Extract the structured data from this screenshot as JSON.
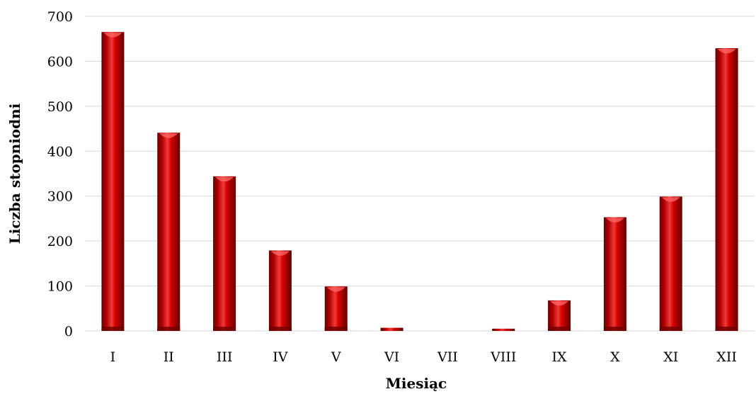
{
  "chart_data": {
    "type": "bar",
    "title": "",
    "xlabel": "Miesiąc",
    "ylabel": "Liczba stopniodni",
    "categories": [
      "I",
      "II",
      "III",
      "IV",
      "V",
      "VI",
      "VII",
      "VIII",
      "IX",
      "X",
      "XI",
      "XII"
    ],
    "values": [
      665,
      441,
      344,
      179,
      99,
      7,
      0,
      5,
      68,
      253,
      299,
      629
    ],
    "ylim": [
      0,
      700
    ],
    "yticks": [
      "0",
      "100",
      "200",
      "300",
      "400",
      "500",
      "600",
      "700"
    ],
    "grid": true,
    "legend": "none",
    "colors": {
      "bar": "#c00000",
      "bar_dark": "#6b0000",
      "bar_light": "#f24a4a",
      "grid": "#d9d9d9"
    }
  }
}
